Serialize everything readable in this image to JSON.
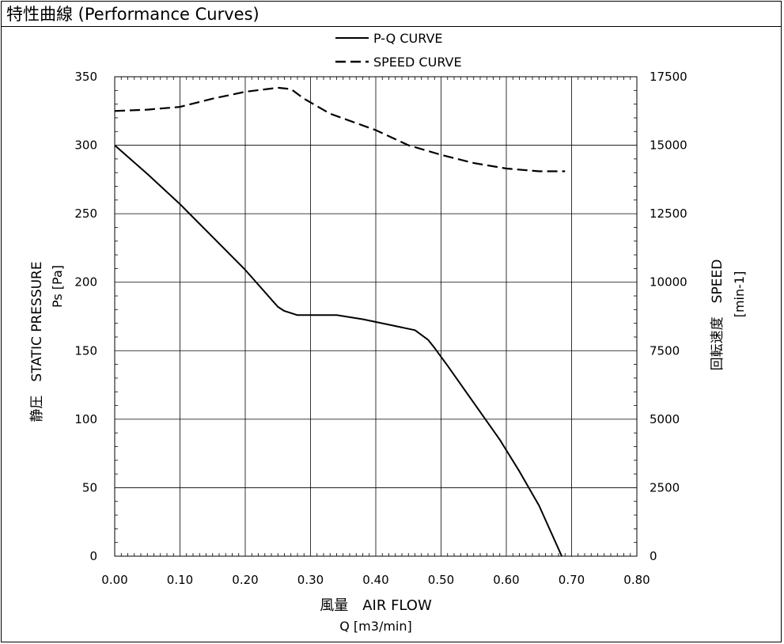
{
  "header": {
    "title": "特性曲線 (Performance Curves)"
  },
  "chart_data": {
    "type": "line",
    "xlabel": "風量　AIR FLOW",
    "xunit": "Q [m3/min]",
    "ylabel": "静圧　STATIC PRESSURE",
    "yunit": "Ps [Pa]",
    "y2label": "回転速度　SPEED",
    "y2unit": "[min-1]",
    "xlim": [
      0,
      0.8
    ],
    "ylim": [
      0,
      350
    ],
    "y2lim": [
      0,
      17500
    ],
    "xticks": [
      "0.00",
      "0.10",
      "0.20",
      "0.30",
      "0.40",
      "0.50",
      "0.60",
      "0.70",
      "0.80"
    ],
    "yticks": [
      "0",
      "50",
      "100",
      "150",
      "200",
      "250",
      "300",
      "350"
    ],
    "y2ticks": [
      "0",
      "2500",
      "5000",
      "7500",
      "10000",
      "12500",
      "15000",
      "17500"
    ],
    "grid": true,
    "legend_position": "top-center",
    "series": [
      {
        "name": "P-Q CURVE",
        "axis": "left",
        "style": "solid",
        "x": [
          0.0,
          0.05,
          0.1,
          0.15,
          0.2,
          0.25,
          0.26,
          0.28,
          0.3,
          0.34,
          0.38,
          0.42,
          0.46,
          0.48,
          0.49,
          0.51,
          0.55,
          0.59,
          0.62,
          0.65,
          0.685
        ],
        "y": [
          300,
          279,
          257,
          233,
          209,
          182,
          179,
          176,
          176,
          176,
          173,
          169,
          165,
          158,
          152,
          139,
          112,
          85,
          62,
          37,
          0
        ]
      },
      {
        "name": "SPEED CURVE",
        "axis": "right",
        "style": "dashed",
        "x": [
          0.0,
          0.05,
          0.1,
          0.15,
          0.2,
          0.25,
          0.27,
          0.29,
          0.33,
          0.4,
          0.45,
          0.5,
          0.55,
          0.6,
          0.65,
          0.69
        ],
        "y": [
          16250,
          16300,
          16400,
          16700,
          16950,
          17100,
          17050,
          16700,
          16150,
          15550,
          15000,
          14650,
          14350,
          14150,
          14050,
          14050
        ]
      }
    ]
  }
}
